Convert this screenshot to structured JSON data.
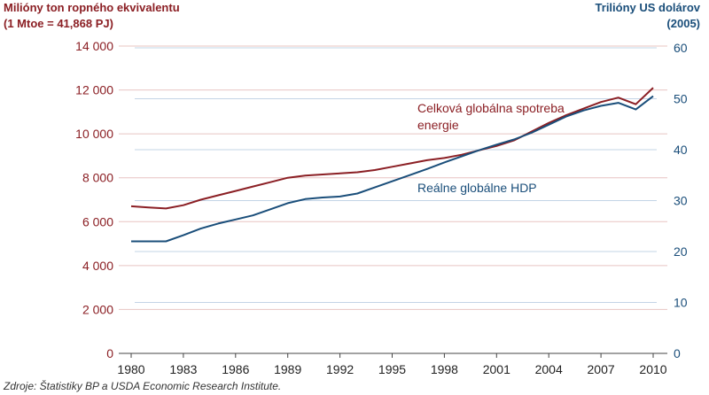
{
  "chart_data": {
    "type": "line",
    "left_axis_title_line1": "Milióny ton ropného ekvivalentu",
    "left_axis_title_line2": "(1 Mtoe = 41,868 PJ)",
    "right_axis_title_line1": "Trilióny US dolárov",
    "right_axis_title_line2": "(2005)",
    "source": "Zdroje: Štatistiky BP a USDA Economic Research Institute.",
    "xlim": [
      1980,
      2010
    ],
    "x_ticks": [
      1980,
      1983,
      1986,
      1989,
      1992,
      1995,
      1998,
      2001,
      2004,
      2007,
      2010
    ],
    "x_tick_labels": [
      "1980",
      "1983",
      "1986",
      "1989",
      "1992",
      "1995",
      "1998",
      "2001",
      "2004",
      "2007",
      "2010"
    ],
    "left_ylim": [
      0,
      14000
    ],
    "left_ticks": [
      0,
      2000,
      4000,
      6000,
      8000,
      10000,
      12000,
      14000
    ],
    "left_tick_labels": [
      "0",
      "2 000",
      "4 000",
      "6 000",
      "8 000",
      "10 000",
      "12 000",
      "14 000"
    ],
    "right_ylim": [
      0,
      60
    ],
    "right_ticks": [
      0,
      10,
      20,
      30,
      40,
      50,
      60
    ],
    "right_tick_labels": [
      "0",
      "10",
      "20",
      "30",
      "40",
      "50",
      "60"
    ],
    "grid": true,
    "series": [
      {
        "name": "Celková globálna spotreba energie",
        "axis": "left",
        "color": "#8b1f24",
        "x": [
          1980,
          1981,
          1982,
          1983,
          1984,
          1985,
          1986,
          1987,
          1988,
          1989,
          1990,
          1991,
          1992,
          1993,
          1994,
          1995,
          1996,
          1997,
          1998,
          1999,
          2000,
          2001,
          2002,
          2003,
          2004,
          2005,
          2006,
          2007,
          2008,
          2009,
          2010
        ],
        "values": [
          6700,
          6650,
          6600,
          6750,
          7000,
          7200,
          7400,
          7600,
          7800,
          8000,
          8100,
          8150,
          8200,
          8250,
          8350,
          8500,
          8650,
          8800,
          8900,
          9050,
          9250,
          9450,
          9700,
          10100,
          10500,
          10850,
          11150,
          11450,
          11650,
          11350,
          12100
        ]
      },
      {
        "name": "Reálne globálne HDP",
        "axis": "right",
        "color": "#1a4e7a",
        "x": [
          1980,
          1981,
          1982,
          1983,
          1984,
          1985,
          1986,
          1987,
          1988,
          1989,
          1990,
          1991,
          1992,
          1993,
          1994,
          1995,
          1996,
          1997,
          1998,
          1999,
          2000,
          2001,
          2002,
          2003,
          2004,
          2005,
          2006,
          2007,
          2008,
          2009,
          2010
        ],
        "values": [
          22,
          22,
          22,
          23.2,
          24.5,
          25.5,
          26.3,
          27.1,
          28.3,
          29.5,
          30.3,
          30.6,
          30.8,
          31.4,
          32.6,
          33.8,
          35,
          36.2,
          37.5,
          38.7,
          39.9,
          41,
          42,
          43.3,
          44.9,
          46.5,
          47.7,
          48.6,
          49.2,
          47.9,
          50.5
        ]
      }
    ],
    "annotations": {
      "energy_line1": "Celková globálna spotreba",
      "energy_line2": "energie",
      "gdp": "Reálne globálne HDP"
    },
    "colors": {
      "energy": "#8b1f24",
      "gdp": "#1a4e7a",
      "left_axis_text": "#8b1f24",
      "right_axis_text": "#1a4e7a",
      "grid_left": "#e8c4c2",
      "grid_right": "#c3d4e6"
    }
  }
}
